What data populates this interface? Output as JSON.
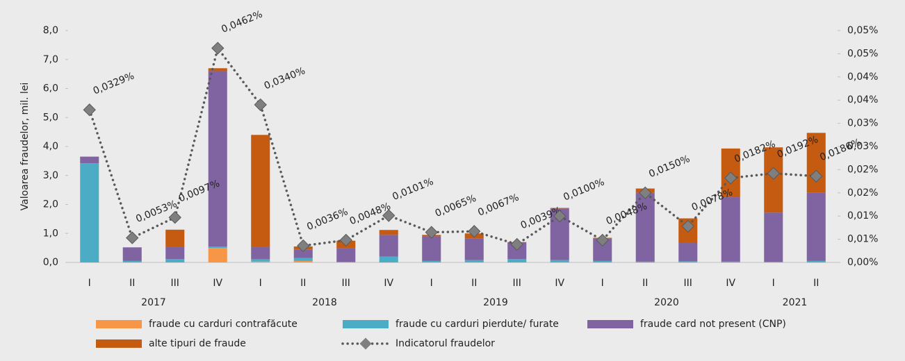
{
  "chart_data": {
    "type": "bar-line",
    "y_label": "Valoarea fraudelor, mil. lei",
    "categories": [
      "I",
      "II",
      "III",
      "IV",
      "I",
      "II",
      "III",
      "IV",
      "I",
      "II",
      "III",
      "IV",
      "I",
      "II",
      "III",
      "IV",
      "I",
      "II"
    ],
    "years": [
      "2017",
      null,
      null,
      null,
      "2018",
      null,
      null,
      null,
      "2019",
      null,
      null,
      null,
      "2020",
      null,
      null,
      null,
      "2021",
      null
    ],
    "series": [
      {
        "name": "fraude cu carduri contrafăcute",
        "color": "#f79646",
        "values": [
          0,
          0,
          0,
          0.5,
          0.03,
          0.05,
          0,
          0,
          0,
          0,
          0,
          0,
          0,
          0,
          0,
          0,
          0,
          0
        ]
      },
      {
        "name": "fraude cu carduri pierdute/ furate",
        "color": "#4bacc6",
        "values": [
          3.42,
          0.05,
          0.12,
          0.05,
          0.08,
          0.1,
          0.02,
          0.2,
          0.05,
          0.08,
          0.12,
          0.08,
          0.05,
          0.03,
          0.04,
          0.03,
          0.02,
          0.05
        ]
      },
      {
        "name": "fraude card not present (CNP)",
        "color": "#8064a2",
        "values": [
          0.23,
          0.47,
          0.43,
          6.05,
          0.44,
          0.3,
          0.48,
          0.75,
          0.85,
          0.74,
          0.55,
          1.78,
          0.78,
          2.37,
          0.63,
          2.22,
          1.7,
          2.35
        ]
      },
      {
        "name": "alte tipuri de fraude",
        "color": "#c55a11",
        "values": [
          0,
          0,
          0.58,
          0.1,
          3.85,
          0.1,
          0.25,
          0.17,
          0.05,
          0.18,
          0.03,
          0.02,
          0.02,
          0.15,
          0.85,
          1.68,
          2.25,
          2.07
        ]
      },
      {
        "name": "Indicatorul fraudelor",
        "color": "#595959",
        "marker_color": "#7f7f7f",
        "axis": "y2",
        "values": [
          0.0329,
          0.0053,
          0.0097,
          0.0462,
          0.034,
          0.0036,
          0.0048,
          0.0101,
          0.0065,
          0.0067,
          0.0039,
          0.01,
          0.0048,
          0.015,
          0.0078,
          0.0182,
          0.0192,
          0.0186
        ],
        "value_labels": [
          "0,0329%",
          "0,0053%",
          "0,0097%",
          "0,0462%",
          "0,0340%",
          "0,0036%",
          "0,0048%",
          "0,0101%",
          "0,0065%",
          "0,0067%",
          "0,0039%",
          "0,0100%",
          "0,0048%",
          "0,0150%",
          "0,0078%",
          "0,0182%",
          "0,0192%",
          "0,0186%"
        ]
      }
    ],
    "ylim": [
      0,
      8
    ],
    "yticks": [
      {
        "value": 0,
        "label": "0,0"
      },
      {
        "value": 1,
        "label": "1,0"
      },
      {
        "value": 2,
        "label": "2,0"
      },
      {
        "value": 3,
        "label": "3,0"
      },
      {
        "value": 4,
        "label": "4,0"
      },
      {
        "value": 5,
        "label": "5,0"
      },
      {
        "value": 6,
        "label": "6,0"
      },
      {
        "value": 7,
        "label": "7,0"
      },
      {
        "value": 8,
        "label": "8,0"
      }
    ],
    "y2lim": [
      0,
      0.05
    ],
    "y2ticks": [
      {
        "value": 0,
        "label": "0,00%"
      },
      {
        "value": 0.005,
        "label": "0,01%"
      },
      {
        "value": 0.01,
        "label": "0,01%"
      },
      {
        "value": 0.015,
        "label": "0,02%"
      },
      {
        "value": 0.02,
        "label": "0,02%"
      },
      {
        "value": 0.025,
        "label": "0,03%"
      },
      {
        "value": 0.03,
        "label": "0,03%"
      },
      {
        "value": 0.035,
        "label": "0,04%"
      },
      {
        "value": 0.04,
        "label": "0,04%"
      },
      {
        "value": 0.045,
        "label": "0,05%"
      },
      {
        "value": 0.05,
        "label": "0,05%"
      }
    ]
  }
}
